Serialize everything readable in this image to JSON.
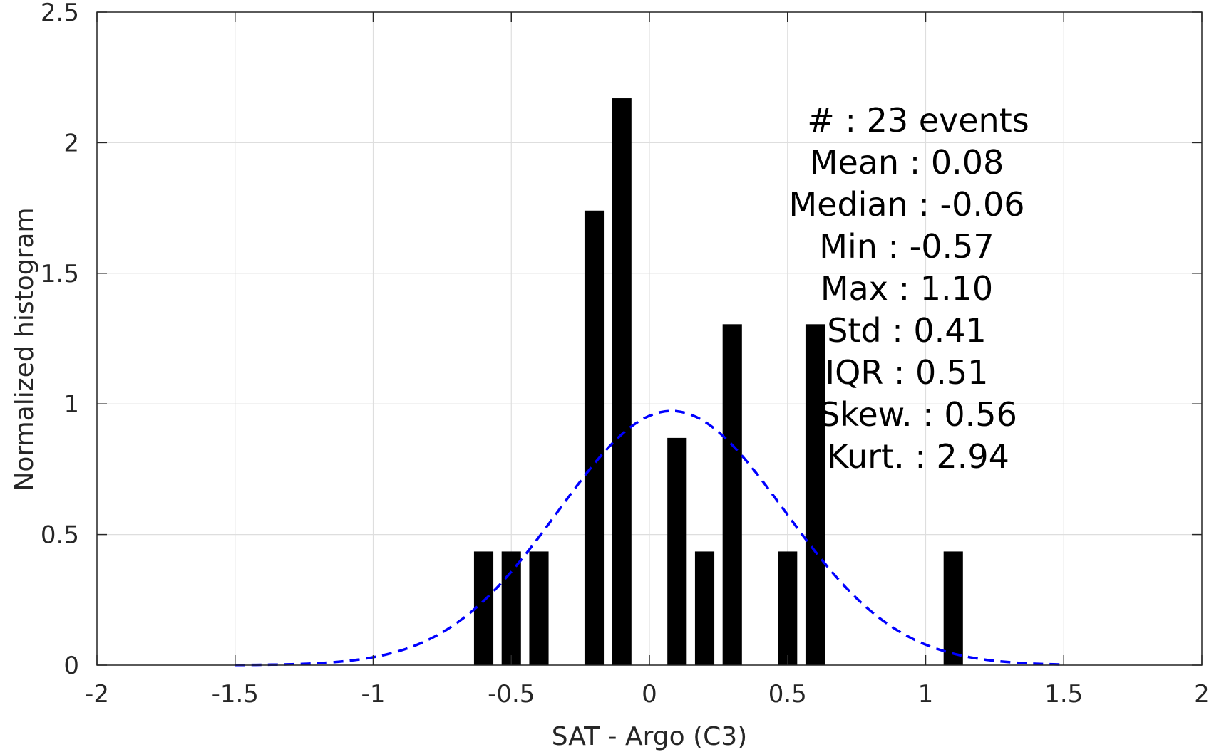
{
  "chart_data": {
    "type": "bar",
    "xlabel": "SAT - Argo (C3)",
    "ylabel": "Normalized histogram",
    "xlim": [
      -2,
      2
    ],
    "ylim": [
      0,
      2.5
    ],
    "xticks": [
      -2,
      -1.5,
      -1,
      -0.5,
      0,
      0.5,
      1,
      1.5,
      2
    ],
    "xtick_labels": [
      "-2",
      "-1.5",
      "-1",
      "-0.5",
      "0",
      "0.5",
      "1",
      "1.5",
      "2"
    ],
    "yticks": [
      0,
      0.5,
      1,
      1.5,
      2,
      2.5
    ],
    "ytick_labels": [
      "0",
      "0.5",
      "1",
      "1.5",
      "2",
      "2.5"
    ],
    "grid": true,
    "bar_width": 0.07,
    "bars": [
      {
        "x": -0.6,
        "value": 0.435
      },
      {
        "x": -0.5,
        "value": 0.435
      },
      {
        "x": -0.4,
        "value": 0.435
      },
      {
        "x": -0.2,
        "value": 1.74
      },
      {
        "x": -0.1,
        "value": 2.17
      },
      {
        "x": 0.1,
        "value": 0.87
      },
      {
        "x": 0.2,
        "value": 0.435
      },
      {
        "x": 0.3,
        "value": 1.305
      },
      {
        "x": 0.5,
        "value": 0.435
      },
      {
        "x": 0.6,
        "value": 1.305
      },
      {
        "x": 1.1,
        "value": 0.435
      }
    ],
    "fit_curve": {
      "type": "normal",
      "mean": 0.08,
      "std": 0.41,
      "x_range": [
        -1.5,
        1.5
      ],
      "style": "dashed",
      "color": "#0000ff"
    },
    "bar_color": "#000000",
    "annotations": [
      "#  : 23 events",
      "Mean : 0.08",
      "Median : -0.06",
      "Min : -0.57",
      "Max : 1.10",
      "Std : 0.41",
      "IQR : 0.51",
      "Skew. : 0.56",
      "Kurt. : 2.94"
    ]
  }
}
